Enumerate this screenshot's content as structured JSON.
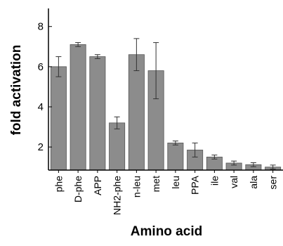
{
  "chart_data": {
    "type": "bar",
    "xlabel": "Amino acid",
    "ylabel": "fold activation",
    "categories": [
      "phe",
      "D-phe",
      "APP",
      "NH2-phe",
      "n-leu",
      "met",
      "leu",
      "PPA",
      "ile",
      "val",
      "ala",
      "ser"
    ],
    "values": [
      6.0,
      7.1,
      6.5,
      3.2,
      6.6,
      5.8,
      2.2,
      1.85,
      1.5,
      1.2,
      1.12,
      1.0
    ],
    "errors": [
      0.5,
      0.1,
      0.1,
      0.3,
      0.8,
      1.4,
      0.1,
      0.35,
      0.1,
      0.1,
      0.1,
      0.1
    ],
    "yticks": [
      2,
      4,
      6,
      8
    ],
    "ylim": [
      0.85,
      8.9
    ],
    "bar_color": "#8c8c8c",
    "grid": false,
    "legend": "none"
  }
}
